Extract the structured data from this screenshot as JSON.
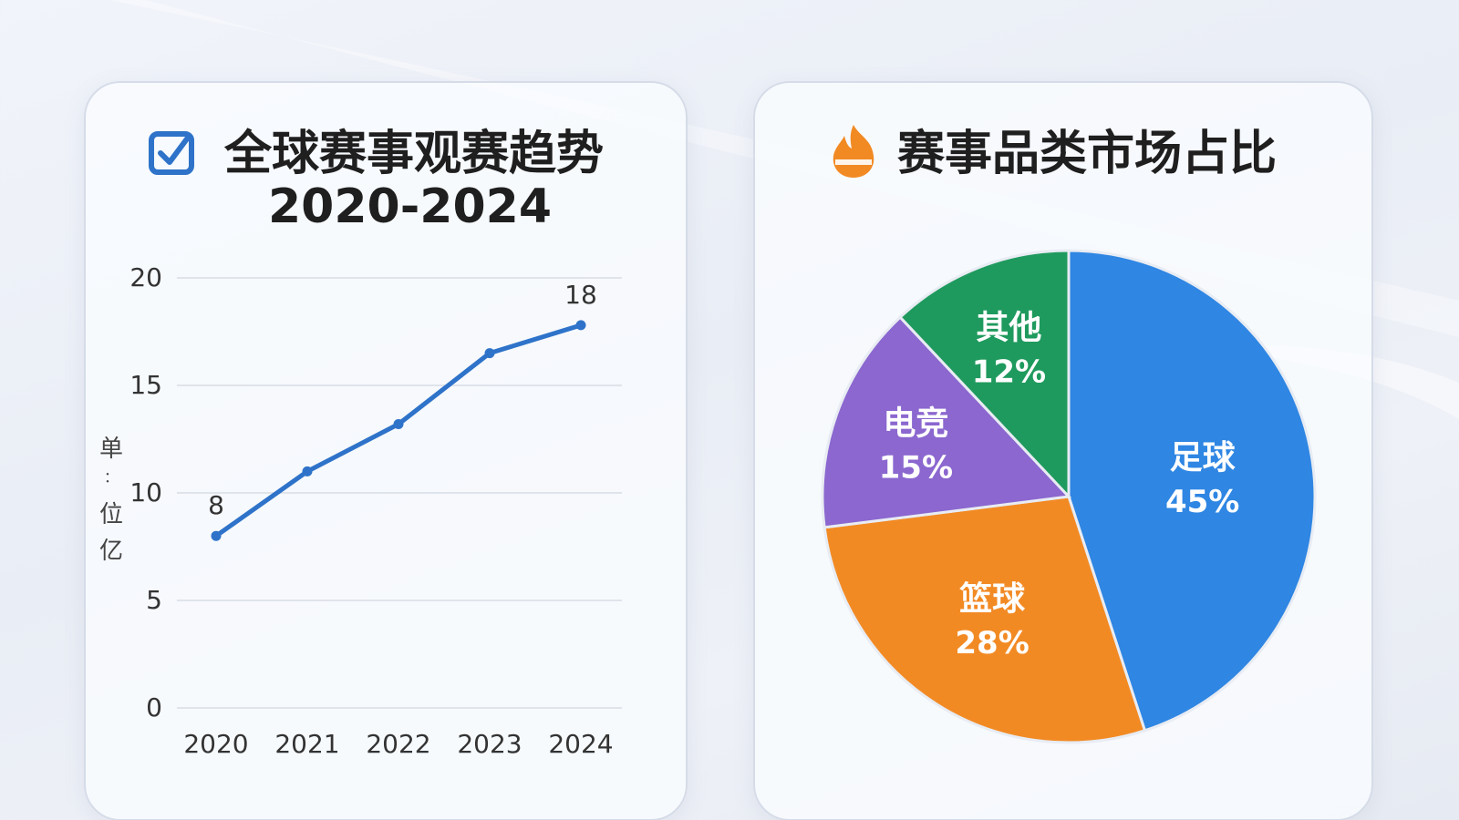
{
  "line_panel": {
    "title_line1": "全球赛事观赛趋势",
    "title_line2": "2020-2024",
    "icon": "checkbox-icon",
    "unit_label": [
      "单",
      "：",
      "位",
      "亿"
    ]
  },
  "pie_panel": {
    "title": "赛事品类市场占比",
    "icon": "fire-icon"
  },
  "colors": {
    "line": "#2e73c9",
    "football": "#2f86e3",
    "basketball": "#f28a24",
    "esports": "#8b67cf",
    "other": "#1f9a5e"
  },
  "chart_data": [
    {
      "type": "line",
      "title": "全球赛事观赛趋势 2020-2024",
      "x": [
        "2020",
        "2021",
        "2022",
        "2023",
        "2024"
      ],
      "series": [
        {
          "values": [
            8,
            11,
            13.2,
            16.5,
            17.8
          ]
        }
      ],
      "data_labels": [
        {
          "x": "2020",
          "text": "8"
        },
        {
          "x": "2024",
          "text": "18"
        }
      ],
      "ylabel": "单：位亿",
      "ylim": [
        0,
        20
      ],
      "yticks": [
        0,
        5,
        10,
        15,
        20
      ],
      "grid": true
    },
    {
      "type": "pie",
      "title": "赛事品类市场占比",
      "slices": [
        {
          "label": "足球",
          "value": 45,
          "display": "45%"
        },
        {
          "label": "篮球",
          "value": 28,
          "display": "28%"
        },
        {
          "label": "电竞",
          "value": 15,
          "display": "15%"
        },
        {
          "label": "其他",
          "value": 12,
          "display": "12%"
        }
      ]
    }
  ]
}
